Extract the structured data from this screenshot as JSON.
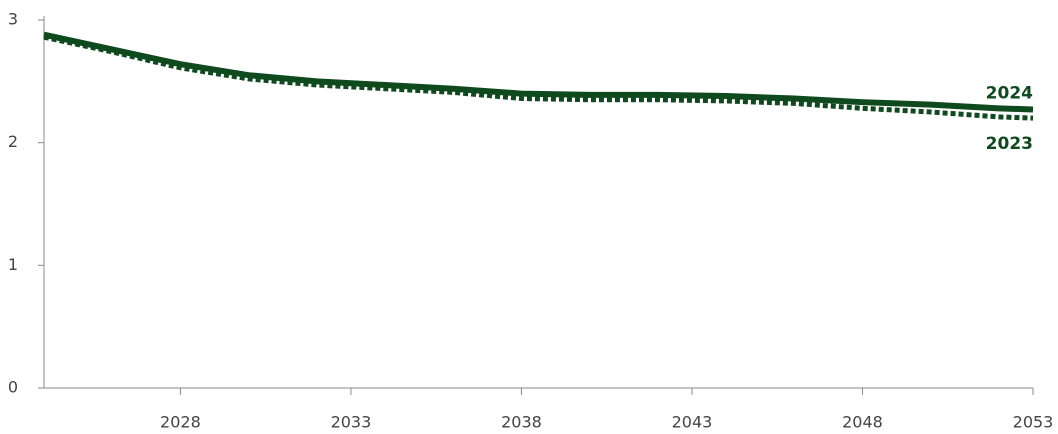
{
  "chart_data": {
    "type": "line",
    "x": [
      2024,
      2026,
      2028,
      2030,
      2032,
      2034,
      2036,
      2038,
      2040,
      2042,
      2044,
      2046,
      2048,
      2050,
      2052,
      2053
    ],
    "series": [
      {
        "name": "2024",
        "color": "#0e4a1d",
        "style": "solid",
        "values": [
          2.88,
          2.76,
          2.64,
          2.55,
          2.5,
          2.47,
          2.44,
          2.4,
          2.39,
          2.39,
          2.38,
          2.36,
          2.33,
          2.31,
          2.28,
          2.27
        ]
      },
      {
        "name": "2023",
        "color": "#0e4a1d",
        "style": "dotted",
        "values": [
          2.86,
          2.74,
          2.61,
          2.52,
          2.47,
          2.44,
          2.41,
          2.36,
          2.35,
          2.35,
          2.34,
          2.32,
          2.28,
          2.25,
          2.21,
          2.2
        ]
      }
    ],
    "xlim": [
      2024,
      2053
    ],
    "xticks": [
      2028,
      2033,
      2038,
      2043,
      2048,
      2053
    ],
    "ylim": [
      0,
      3
    ],
    "yticks": [
      0,
      1,
      2,
      3
    ],
    "grid": false
  }
}
